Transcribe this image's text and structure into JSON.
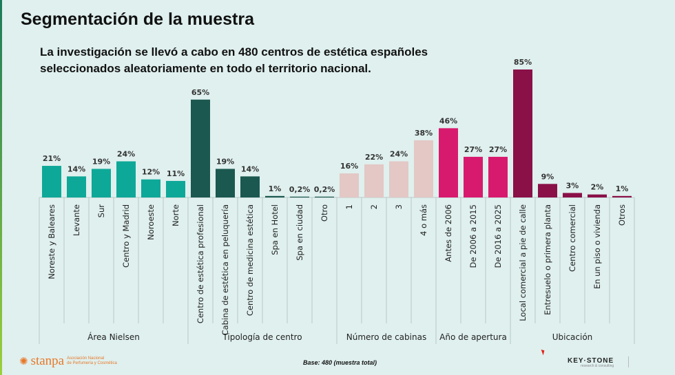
{
  "header": {
    "title": "Segmentación de la muestra",
    "subtitle_line1": "La investigación se llevó a cabo en 480 centros de estética españoles",
    "subtitle_line2": "seleccionados aleatoriamente en todo el territorio nacional."
  },
  "footer": {
    "base": "Base: 480 (muestra total)",
    "stanpa_logo": "stanpa",
    "stanpa_assoc_line1": "Asociación Nacional",
    "stanpa_assoc_line2": "de Perfumería y Cosmética",
    "keystone_logo": "KEY·STONE",
    "keystone_tagline": "research & consulting"
  },
  "chart_data": {
    "type": "bar",
    "ylim": [
      0,
      85
    ],
    "grid": false,
    "groups": [
      {
        "name": "Área Nielsen",
        "color": "#0ea898",
        "categories": [
          "Noreste y Baleares",
          "Levante",
          "Sur",
          "Centro y Madrid",
          "Noroeste",
          "Norte"
        ],
        "values": [
          21,
          14,
          19,
          24,
          12,
          11
        ],
        "labels": [
          "21%",
          "14%",
          "19%",
          "24%",
          "12%",
          "11%"
        ]
      },
      {
        "name": "Tipología de centro",
        "color": "#1b5850",
        "categories": [
          "Centro de estética profesional",
          "Cabina de estética en peluquería",
          "Centro de medicina estética",
          "Spa en Hotel",
          "Spa en ciudad",
          "Otro"
        ],
        "values": [
          65,
          19,
          14,
          1,
          0.2,
          0.2
        ],
        "labels": [
          "65%",
          "19%",
          "14%",
          "1%",
          "0,2%",
          "0,2%"
        ]
      },
      {
        "name": "Número de cabinas",
        "color": "#e3c8c5",
        "categories": [
          "1",
          "2",
          "3",
          "4 o más"
        ],
        "values": [
          16,
          22,
          24,
          38
        ],
        "labels": [
          "16%",
          "22%",
          "24%",
          "38%"
        ]
      },
      {
        "name": "Año de apertura",
        "color": "#d81a6e",
        "categories": [
          "Antes de 2006",
          "De 2006 a 2015",
          "De 2016 a 2025"
        ],
        "values": [
          46,
          27,
          27
        ],
        "labels": [
          "46%",
          "27%",
          "27%"
        ]
      },
      {
        "name": "Ubicación",
        "color": "#8a1048",
        "categories": [
          "Local comercial a pie de calle",
          "Entresuelo o primera planta",
          "Centro comercial",
          "En un piso o vivienda",
          "Otros"
        ],
        "values": [
          85,
          9,
          3,
          2,
          1
        ],
        "labels": [
          "85%",
          "9%",
          "3%",
          "2%",
          "1%"
        ]
      }
    ]
  }
}
